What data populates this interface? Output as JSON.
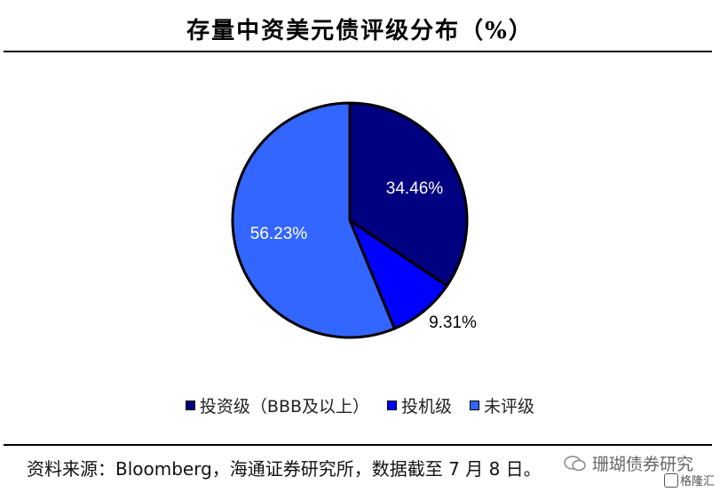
{
  "title": "存量中资美元债评级分布（%）",
  "chart_data": {
    "type": "pie",
    "title": "存量中资美元债评级分布（%）",
    "slices": [
      {
        "label": "投资级（BBB及以上）",
        "value": 34.46,
        "display": "34.46%",
        "color": "#000080"
      },
      {
        "label": "投机级",
        "value": 9.31,
        "display": "9.31%",
        "color": "#0000ff"
      },
      {
        "label": "未评级",
        "value": 56.23,
        "display": "56.23%",
        "color": "#3366ff"
      }
    ],
    "legend_position": "bottom"
  },
  "source": "资料来源：Bloomberg，海通证券研究所，数据截至 7 月 8 日。",
  "watermark": {
    "text": "珊瑚债券研究",
    "icon": "wechat-icon"
  },
  "logo": {
    "text": "格隆汇",
    "icon": "logo-icon"
  }
}
